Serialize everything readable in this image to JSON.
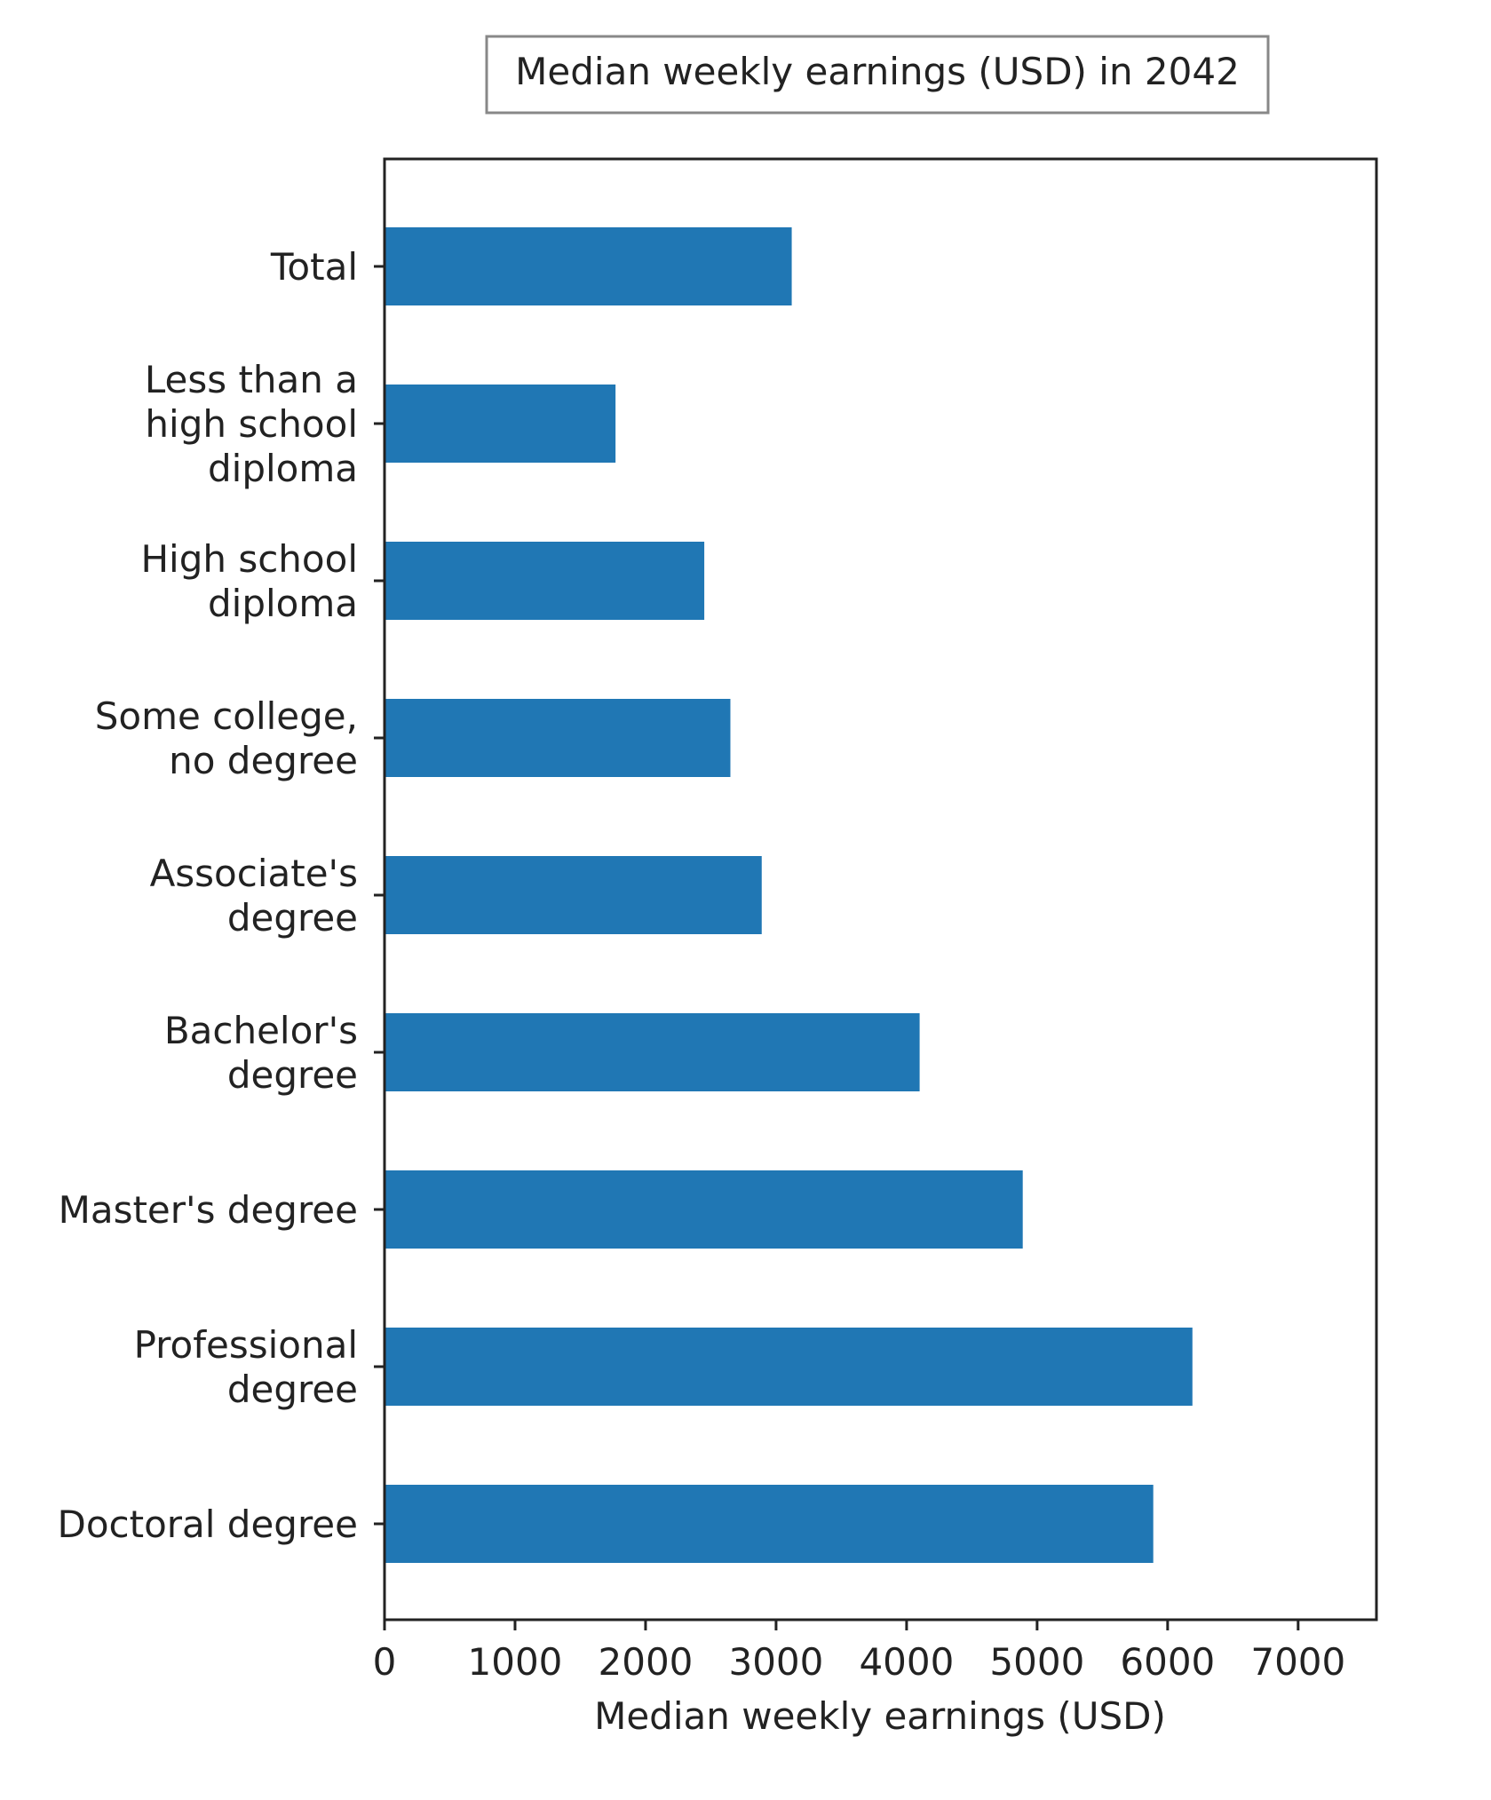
{
  "chart_data": {
    "type": "bar",
    "orientation": "horizontal",
    "title": "Median weekly earnings (USD) in 2042",
    "xlabel": "Median weekly earnings (USD)",
    "ylabel": "",
    "categories": [
      [
        "Total"
      ],
      [
        "Less than a",
        "high school",
        "diploma"
      ],
      [
        "High school",
        "diploma"
      ],
      [
        "Some college,",
        "no degree"
      ],
      [
        "Associate's",
        "degree"
      ],
      [
        "Bachelor's",
        "degree"
      ],
      [
        "Master's degree"
      ],
      [
        "Professional",
        "degree"
      ],
      [
        "Doctoral degree"
      ]
    ],
    "values": [
      3120,
      1770,
      2450,
      2650,
      2890,
      4100,
      4890,
      6190,
      5890
    ],
    "xlim": [
      0,
      7600
    ],
    "xticks": [
      0,
      1000,
      2000,
      3000,
      4000,
      5000,
      6000,
      7000
    ],
    "xtick_labels": [
      "0",
      "1000",
      "2000",
      "3000",
      "4000",
      "5000",
      "6000",
      "7000"
    ],
    "grid": false,
    "legend": "none",
    "bar_color": "#2077b4",
    "title_placement": "boxed, top-center"
  }
}
